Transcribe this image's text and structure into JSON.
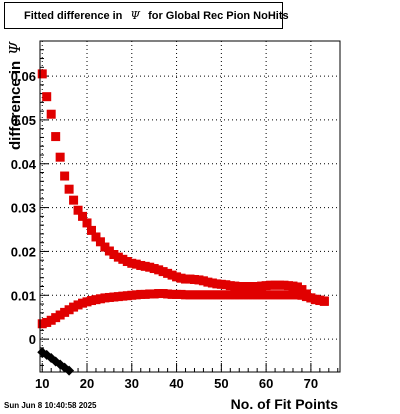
{
  "chart_data": {
    "type": "scatter",
    "title": {
      "prefix": "Fitted difference in",
      "symbol": "Ψ",
      "suffix": "for Global Rec Pion NoHits"
    },
    "xlabel": "No. of Fit Points",
    "ylabel": {
      "text": "difference in",
      "symbol": "Ψ"
    },
    "xlim": [
      9.5,
      76.5
    ],
    "ylim": [
      -0.0075,
      0.068
    ],
    "x_ticks": [
      10,
      20,
      30,
      40,
      50,
      60,
      70
    ],
    "y_ticks": [
      0,
      0.01,
      0.02,
      0.03,
      0.04,
      0.05,
      0.06
    ],
    "y_tick_labels": [
      "0",
      "0.01",
      "0.02",
      "0.03",
      "0.04",
      "0.05",
      "0.06"
    ],
    "grid": true,
    "series": [
      {
        "marker": "square",
        "color": "#e00000",
        "x": [
          10,
          11,
          12,
          13,
          14,
          15,
          16,
          17,
          18,
          19,
          20,
          21,
          22,
          23,
          24,
          25,
          26,
          27,
          28,
          29,
          30,
          31,
          32,
          33,
          34,
          35,
          36,
          37,
          38,
          39,
          40,
          41,
          42,
          43,
          44,
          45,
          46,
          47,
          48,
          49,
          50,
          51,
          52,
          53,
          54,
          55,
          56,
          57,
          58,
          59,
          60,
          61,
          62,
          63,
          64,
          65,
          66,
          67,
          68,
          69,
          70,
          71,
          72,
          73
        ],
        "y": [
          0.0605,
          0.0553,
          0.0513,
          0.0462,
          0.0415,
          0.0372,
          0.0342,
          0.0317,
          0.0294,
          0.028,
          0.0265,
          0.0248,
          0.0233,
          0.0222,
          0.021,
          0.0201,
          0.0193,
          0.0187,
          0.0182,
          0.0177,
          0.0173,
          0.0171,
          0.0168,
          0.0166,
          0.0164,
          0.0161,
          0.0158,
          0.0154,
          0.015,
          0.0146,
          0.0142,
          0.0139,
          0.0137,
          0.0137,
          0.0136,
          0.0135,
          0.0133,
          0.013,
          0.0128,
          0.0126,
          0.0125,
          0.0124,
          0.0122,
          0.0121,
          0.012,
          0.012,
          0.012,
          0.012,
          0.012,
          0.0121,
          0.0122,
          0.0123,
          0.0123,
          0.0123,
          0.0123,
          0.0122,
          0.0121,
          0.0119,
          0.0113,
          0.0103,
          0.0094,
          0.009,
          0.0088,
          0.0086
        ]
      },
      {
        "marker": "square",
        "color": "#e00000",
        "x": [
          10,
          11,
          12,
          13,
          14,
          15,
          16,
          17,
          18,
          19,
          20,
          21,
          22,
          23,
          24,
          25,
          26,
          27,
          28,
          29,
          30,
          31,
          32,
          33,
          34,
          35,
          36,
          37,
          38,
          39,
          40,
          41,
          42,
          43,
          44,
          45,
          46,
          47,
          48,
          49,
          50,
          51,
          52,
          53,
          54,
          55,
          56,
          57,
          58,
          59,
          60,
          61,
          62,
          63,
          64,
          65,
          66,
          67,
          68,
          69,
          70,
          71,
          72,
          73
        ],
        "y": [
          0.0035,
          0.0038,
          0.0043,
          0.0049,
          0.0055,
          0.0061,
          0.0067,
          0.0073,
          0.0078,
          0.0082,
          0.0085,
          0.0088,
          0.009,
          0.0092,
          0.0094,
          0.0095,
          0.0096,
          0.0097,
          0.0098,
          0.0099,
          0.01,
          0.0101,
          0.0102,
          0.0102,
          0.0103,
          0.0103,
          0.0104,
          0.0104,
          0.0103,
          0.0102,
          0.0102,
          0.0102,
          0.0101,
          0.0101,
          0.0101,
          0.0101,
          0.0101,
          0.0101,
          0.0101,
          0.0101,
          0.0101,
          0.0101,
          0.0101,
          0.0101,
          0.0101,
          0.0101,
          0.0101,
          0.0101,
          0.0101,
          0.0101,
          0.0101,
          0.0101,
          0.0101,
          0.0101,
          0.0101,
          0.0101,
          0.0101,
          0.0101,
          0.01,
          0.0097,
          0.0094,
          0.0091,
          0.0089,
          0.0087
        ]
      },
      {
        "marker": "diamond",
        "color": "#000000",
        "x": [
          10,
          11,
          12,
          13,
          14,
          15,
          16
        ],
        "y": [
          -0.003,
          -0.0036,
          -0.0043,
          -0.0051,
          -0.0058,
          -0.0065,
          -0.0072
        ]
      }
    ]
  },
  "footer": {
    "timestamp": "Sun Jun  8 10:40:58 2025"
  }
}
